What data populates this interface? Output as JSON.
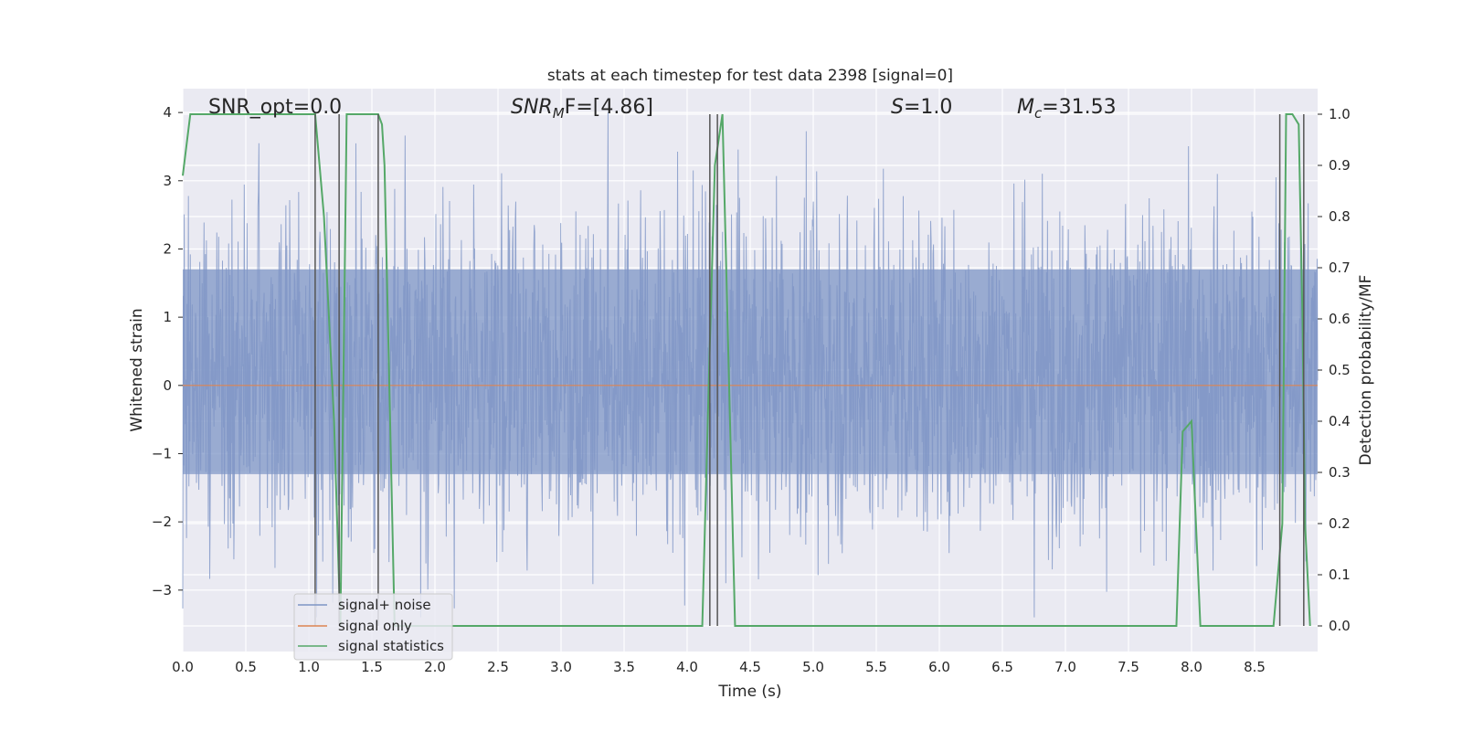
{
  "chart_data": {
    "type": "line",
    "title": "stats at each timestep for test data 2398 [signal=0]",
    "xlabel": "Time (s)",
    "ylabel_left": "Whitened strain",
    "ylabel_right": "Detection probability/MF",
    "xlim": [
      0.0,
      9.0
    ],
    "ylim_left": [
      -3.9,
      4.35
    ],
    "ylim_right": [
      -0.05,
      1.05
    ],
    "xticks": [
      "0.0",
      "0.5",
      "1.0",
      "1.5",
      "2.0",
      "2.5",
      "3.0",
      "3.5",
      "4.0",
      "4.5",
      "5.0",
      "5.5",
      "6.0",
      "6.5",
      "7.0",
      "7.5",
      "8.0",
      "8.5"
    ],
    "xtick_values": [
      0,
      0.5,
      1,
      1.5,
      2,
      2.5,
      3,
      3.5,
      4,
      4.5,
      5,
      5.5,
      6,
      6.5,
      7,
      7.5,
      8,
      8.5
    ],
    "yticks_left": [
      "4",
      "3",
      "2",
      "1",
      "0",
      "−1",
      "−2",
      "−3"
    ],
    "ytick_values_left": [
      4,
      3,
      2,
      1,
      0,
      -1,
      -2,
      -3
    ],
    "yticks_right": [
      "1.0",
      "0.9",
      "0.8",
      "0.7",
      "0.6",
      "0.5",
      "0.4",
      "0.3",
      "0.2",
      "0.1",
      "0.0"
    ],
    "ytick_values_right": [
      1.0,
      0.9,
      0.8,
      0.7,
      0.6,
      0.5,
      0.4,
      0.3,
      0.2,
      0.1,
      0.0
    ],
    "grid": true,
    "annotations": {
      "snr_opt": "SNR_opt=0.0",
      "snr_mf_main": "SNR",
      "snr_mf_sub": "M",
      "snr_mf_rest": "F=[4.86]",
      "s_main": "S",
      "s_rest": "=1.0",
      "mc_main": "M",
      "mc_sub": "c",
      "mc_rest": "=31.53"
    },
    "legend": {
      "placement": "lower-left",
      "entries": [
        "signal+ noise",
        "signal only",
        "signal statistics"
      ]
    },
    "series": [
      {
        "name": "signal+ noise",
        "axis": "left",
        "color": "#7e95c5",
        "kind": "noise",
        "typical_range": [
          -1.3,
          1.7
        ],
        "extreme_range": [
          -3.4,
          4.0
        ]
      },
      {
        "name": "signal only",
        "axis": "left",
        "color": "#dd8452",
        "x": [
          0.0,
          9.0
        ],
        "y": [
          0.0,
          0.0
        ]
      },
      {
        "name": "signal statistics",
        "axis": "right",
        "color": "#55a868",
        "x": [
          0.0,
          0.06,
          0.12,
          0.2,
          1.05,
          1.12,
          1.2,
          1.25,
          1.3,
          1.35,
          1.55,
          1.58,
          1.6,
          1.68,
          1.75,
          2.0,
          4.12,
          4.18,
          4.22,
          4.28,
          4.32,
          4.38,
          4.45,
          7.88,
          7.93,
          8.0,
          8.07,
          8.5,
          8.65,
          8.72,
          8.75,
          8.8,
          8.85,
          8.88,
          8.9,
          8.94
        ],
        "y": [
          0.88,
          1.0,
          1.0,
          1.0,
          1.0,
          0.8,
          0.4,
          0.0,
          1.0,
          1.0,
          1.0,
          0.98,
          0.9,
          0.0,
          0.0,
          0.0,
          0.0,
          0.55,
          0.9,
          1.0,
          0.6,
          0.0,
          0.0,
          0.0,
          0.38,
          0.4,
          0.0,
          0.0,
          0.0,
          0.2,
          1.0,
          1.0,
          0.98,
          0.6,
          0.2,
          0.0
        ]
      }
    ],
    "vertical_markers": [
      1.05,
      1.24,
      1.55,
      4.18,
      4.24,
      8.7,
      8.89
    ]
  }
}
